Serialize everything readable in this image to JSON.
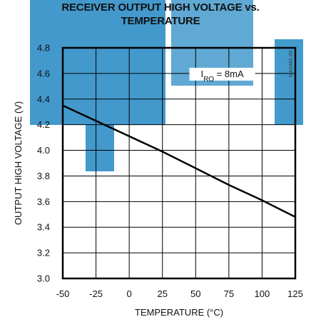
{
  "chart_data": {
    "type": "line",
    "title": [
      "RECEIVER OUTPUT HIGH VOLTAGE vs.",
      "TEMPERATURE"
    ],
    "xlabel": "TEMPERATURE (°C)",
    "ylabel": "OUTPUT HIGH VOLTAGE (V)",
    "xlim": [
      -50,
      125
    ],
    "ylim": [
      3.0,
      4.8
    ],
    "x_ticks": [
      -50,
      -25,
      0,
      25,
      50,
      75,
      100,
      125
    ],
    "x_tick_labels": [
      "-50",
      "-25",
      "0",
      "25",
      "50",
      "75",
      "100",
      "125"
    ],
    "y_ticks": [
      3.0,
      3.2,
      3.4,
      3.6,
      3.8,
      4.0,
      4.2,
      4.4,
      4.6,
      4.8
    ],
    "y_tick_labels": [
      "3.0",
      "3.2",
      "3.4",
      "3.6",
      "3.8",
      "4.0",
      "4.2",
      "4.4",
      "4.6",
      "4.8"
    ],
    "grid": true,
    "series": [
      {
        "x": [
          -50,
          -25,
          0,
          25,
          50,
          75,
          100,
          125
        ],
        "y": [
          4.35,
          4.23,
          4.11,
          3.99,
          3.86,
          3.73,
          3.61,
          3.48
        ]
      }
    ],
    "annotation": {
      "main": "I",
      "sub": "RO",
      "rest": " = 8mA"
    },
    "side_id": "MAX481-03"
  },
  "watermark_colors": {
    "primary": "#2f8fc7",
    "light": "#9fd0ea"
  },
  "line_color": "#000000"
}
